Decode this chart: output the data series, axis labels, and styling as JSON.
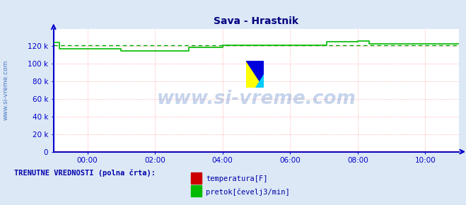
{
  "title": "Sava - Hrastnik",
  "title_color": "#000080",
  "title_fontsize": 10,
  "bg_color": "#dce8f5",
  "plot_bg_color": "#ffffff",
  "axis_color": "#0000cc",
  "text_color": "#0000aa",
  "watermark_text": "www.si-vreme.com",
  "watermark_color": "#3366bb",
  "watermark_alpha": 0.28,
  "ylabel_text": "www.si-vreme.com",
  "ylim": [
    0,
    140000
  ],
  "yticks": [
    0,
    20000,
    40000,
    60000,
    80000,
    100000,
    120000
  ],
  "ytick_labels": [
    "0",
    "20 k",
    "40 k",
    "60 k",
    "80 k",
    "100 k",
    "120 k"
  ],
  "xlim": [
    0,
    144
  ],
  "xtick_positions": [
    12,
    36,
    60,
    84,
    108,
    132
  ],
  "xtick_labels": [
    "00:00",
    "02:00",
    "04:00",
    "06:00",
    "08:00",
    "10:00"
  ],
  "grid_color": "#ffaaaa",
  "green_line_color": "#00bb00",
  "green_dashed_color": "#00aa00",
  "green_dashed_y": 121000,
  "red_line_color": "#dd0000",
  "legend_label_temp": "temperatura[F]",
  "legend_label_pretok": "pretok[čevelj3/min]",
  "legend_title": "TRENUTNE VREDNOSTI (polna črta):",
  "legend_color": "#0000aa",
  "temp_color": "#cc0000",
  "pretok_color": "#00bb00",
  "green_data_x": [
    0,
    1,
    2,
    3,
    4,
    5,
    6,
    7,
    8,
    9,
    10,
    11,
    12,
    13,
    14,
    15,
    16,
    17,
    18,
    19,
    20,
    21,
    22,
    23,
    24,
    25,
    26,
    27,
    28,
    29,
    30,
    31,
    32,
    33,
    34,
    35,
    36,
    37,
    38,
    39,
    40,
    41,
    42,
    43,
    44,
    45,
    46,
    47,
    48,
    49,
    50,
    51,
    52,
    53,
    54,
    55,
    56,
    57,
    58,
    59,
    60,
    61,
    62,
    63,
    64,
    65,
    66,
    67,
    68,
    69,
    70,
    71,
    72,
    73,
    74,
    75,
    76,
    77,
    78,
    79,
    80,
    81,
    82,
    83,
    84,
    85,
    86,
    87,
    88,
    89,
    90,
    91,
    92,
    93,
    94,
    95,
    96,
    97,
    98,
    99,
    100,
    101,
    102,
    103,
    104,
    105,
    106,
    107,
    108,
    109,
    110,
    111,
    112,
    113,
    114,
    115,
    116,
    117,
    118,
    119,
    120,
    121,
    122,
    123,
    124,
    125,
    126,
    127,
    128,
    129,
    130,
    131,
    132,
    133,
    134,
    135,
    136,
    137,
    138,
    139,
    140,
    141,
    142,
    143,
    144
  ],
  "green_data_y": [
    124000,
    124000,
    117000,
    117000,
    117000,
    117000,
    117000,
    117000,
    117000,
    117000,
    117000,
    117000,
    117000,
    117000,
    117000,
    117000,
    117000,
    117000,
    117000,
    117000,
    117000,
    117000,
    117000,
    117000,
    115000,
    115000,
    115000,
    115000,
    115000,
    115000,
    115000,
    115000,
    115000,
    115000,
    115000,
    115000,
    115000,
    115000,
    115000,
    115000,
    115000,
    115000,
    115000,
    115000,
    115000,
    115000,
    115000,
    115000,
    119000,
    119000,
    119000,
    119000,
    119000,
    119000,
    119000,
    119000,
    119000,
    119000,
    119000,
    119000,
    121000,
    121000,
    121000,
    121000,
    121000,
    121000,
    121000,
    121000,
    121000,
    121000,
    121000,
    121000,
    121000,
    121000,
    121000,
    121000,
    121000,
    121000,
    121000,
    121000,
    121000,
    121000,
    121000,
    121000,
    121000,
    121000,
    121000,
    121000,
    121000,
    121000,
    121000,
    121000,
    121000,
    121000,
    121000,
    121000,
    121000,
    125000,
    125000,
    125000,
    125000,
    125000,
    125000,
    125000,
    125000,
    125000,
    125000,
    125000,
    126000,
    126000,
    126000,
    126000,
    123000,
    123000,
    123000,
    123000,
    123000,
    123000,
    123000,
    123000,
    123000,
    123000,
    123000,
    123000,
    123000,
    123000,
    123000,
    123000,
    123000,
    123000,
    123000,
    123000,
    123000,
    123000,
    123000,
    123000,
    123000,
    123000,
    123000,
    123000,
    123000,
    123000,
    123000,
    123000,
    123000
  ]
}
